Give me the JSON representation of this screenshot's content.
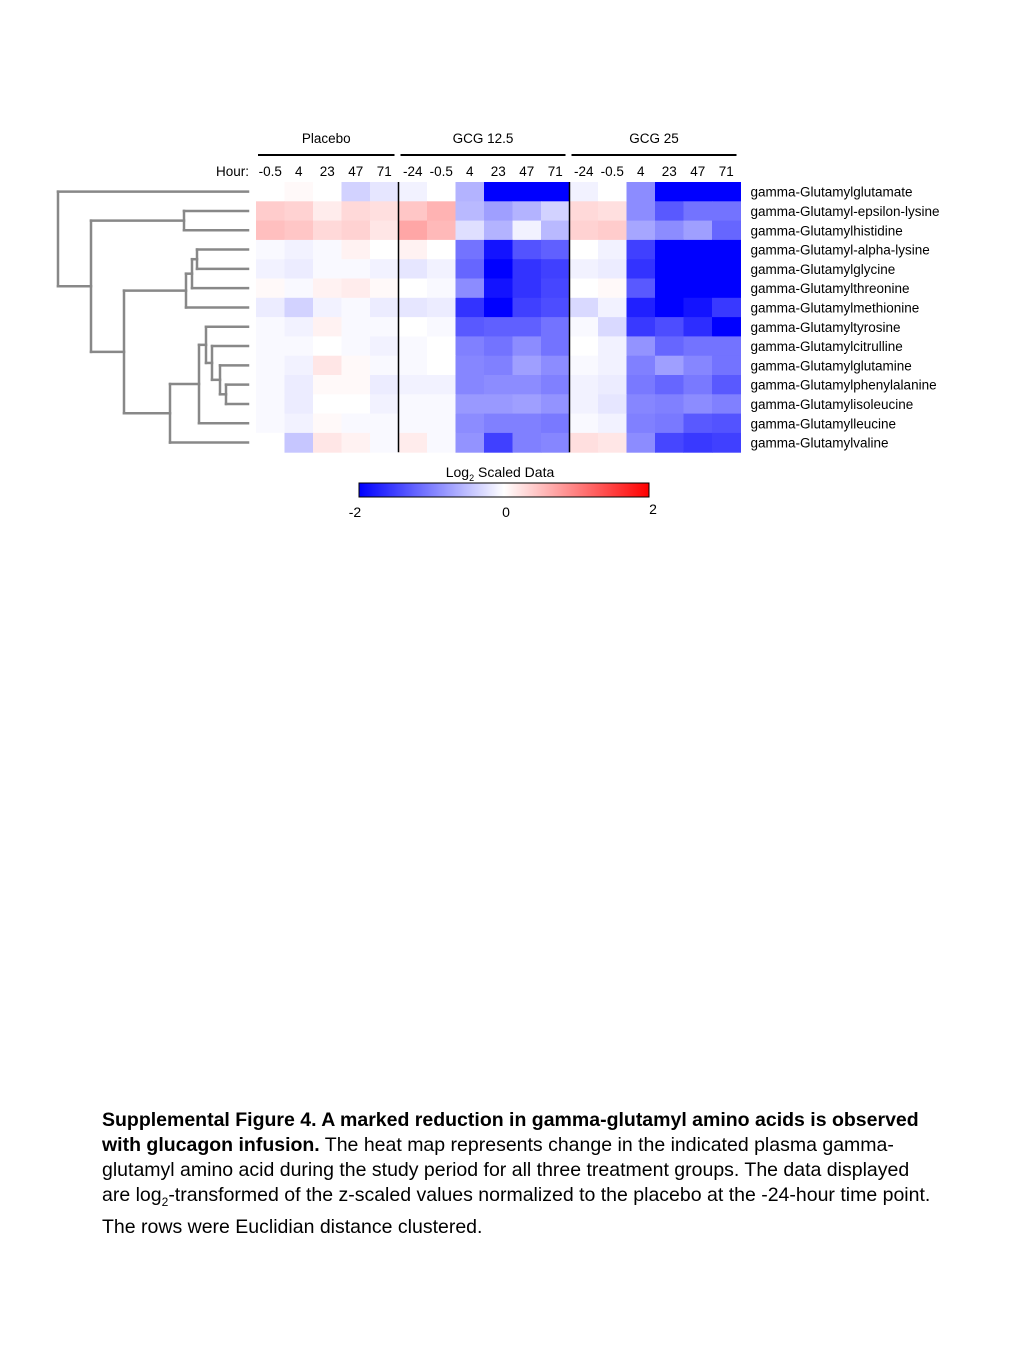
{
  "chart_data": {
    "type": "heatmap",
    "groups": [
      {
        "name": "Placebo",
        "hours": [
          "-0.5",
          "4",
          "23",
          "47",
          "71"
        ]
      },
      {
        "name": "GCG 12.5",
        "hours": [
          "-24",
          "-0.5",
          "4",
          "23",
          "47",
          "71"
        ]
      },
      {
        "name": "GCG 25",
        "hours": [
          "-24",
          "-0.5",
          "4",
          "23",
          "47",
          "71"
        ]
      }
    ],
    "hour_label": "Hour:",
    "rows": [
      "gamma-Glutamylglutamate",
      "gamma-Glutamyl-epsilon-lysine",
      "gamma-Glutamylhistidine",
      "gamma-Glutamyl-alpha-lysine",
      "gamma-Glutamylglycine",
      "gamma-Glutamylthreonine",
      "gamma-Glutamylmethionine",
      "gamma-Glutamyltyrosine",
      "gamma-Glutamylcitrulline",
      "gamma-Glutamylglutamine",
      "gamma-Glutamylphenylalanine",
      "gamma-Glutamylisoleucine",
      "gamma-Glutamylleucine",
      "gamma-Glutamylvaline"
    ],
    "values": [
      [
        0.0,
        0.05,
        0.0,
        -0.35,
        -0.2,
        -0.1,
        0.0,
        -0.6,
        -2.0,
        -2.0,
        -2.0,
        -0.1,
        0.0,
        -0.9,
        -2.0,
        -2.0,
        -2.0
      ],
      [
        0.4,
        0.35,
        0.15,
        0.3,
        0.25,
        0.45,
        0.6,
        -0.55,
        -0.75,
        -0.6,
        -0.35,
        0.3,
        0.25,
        -0.9,
        -1.3,
        -1.1,
        -1.1
      ],
      [
        0.5,
        0.45,
        0.3,
        0.35,
        0.2,
        0.7,
        0.55,
        -0.25,
        -0.6,
        -0.1,
        -0.55,
        0.35,
        0.4,
        -0.7,
        -0.9,
        -0.75,
        -1.2
      ],
      [
        -0.05,
        -0.1,
        -0.05,
        0.1,
        0.0,
        0.1,
        0.0,
        -1.1,
        -1.85,
        -1.35,
        -1.25,
        0.0,
        -0.1,
        -1.5,
        -2.0,
        -2.0,
        -2.0
      ],
      [
        -0.1,
        -0.15,
        -0.05,
        -0.05,
        -0.1,
        -0.2,
        -0.1,
        -1.2,
        -2.0,
        -1.6,
        -1.5,
        -0.1,
        -0.15,
        -1.6,
        -2.0,
        -2.0,
        -2.0
      ],
      [
        0.05,
        -0.05,
        0.1,
        0.15,
        0.05,
        0.0,
        -0.05,
        -0.9,
        -1.85,
        -1.6,
        -1.45,
        0.0,
        0.05,
        -1.3,
        -2.0,
        -2.0,
        -2.0
      ],
      [
        -0.15,
        -0.35,
        -0.1,
        -0.05,
        -0.15,
        -0.2,
        -0.15,
        -1.6,
        -2.0,
        -1.5,
        -1.4,
        -0.3,
        -0.1,
        -1.75,
        -2.0,
        -1.85,
        -1.55
      ],
      [
        -0.05,
        -0.1,
        0.1,
        -0.05,
        -0.05,
        0.0,
        -0.05,
        -1.3,
        -1.25,
        -1.25,
        -1.1,
        -0.05,
        -0.3,
        -1.55,
        -1.4,
        -1.65,
        -2.0
      ],
      [
        -0.05,
        -0.05,
        0.0,
        -0.05,
        -0.1,
        -0.05,
        0.0,
        -1.0,
        -1.1,
        -0.9,
        -1.1,
        0.0,
        -0.1,
        -0.85,
        -1.2,
        -1.1,
        -1.1
      ],
      [
        -0.05,
        -0.1,
        0.2,
        0.05,
        -0.05,
        -0.05,
        0.0,
        -0.95,
        -1.0,
        -0.75,
        -0.9,
        -0.05,
        -0.1,
        -1.0,
        -0.75,
        -0.95,
        -1.1
      ],
      [
        -0.05,
        -0.15,
        0.05,
        0.05,
        -0.15,
        -0.1,
        -0.1,
        -0.95,
        -0.9,
        -0.9,
        -1.0,
        -0.1,
        -0.15,
        -1.05,
        -1.2,
        -1.05,
        -1.3
      ],
      [
        -0.05,
        -0.15,
        0.0,
        0.0,
        -0.1,
        -0.05,
        -0.05,
        -0.8,
        -0.8,
        -0.75,
        -0.85,
        -0.1,
        -0.2,
        -0.95,
        -1.0,
        -0.9,
        -1.0
      ],
      [
        -0.05,
        -0.1,
        0.05,
        -0.05,
        -0.05,
        -0.05,
        -0.05,
        -0.9,
        -1.0,
        -1.0,
        -1.05,
        -0.05,
        -0.1,
        -1.0,
        -1.05,
        -1.3,
        -1.35
      ],
      [
        0.0,
        -0.45,
        0.2,
        0.1,
        -0.05,
        0.15,
        -0.05,
        -0.85,
        -1.5,
        -1.0,
        -0.95,
        0.25,
        0.2,
        -0.9,
        -1.45,
        -1.55,
        -1.5
      ]
    ],
    "colorbar": {
      "title_prefix": "Log",
      "title_sub": "2",
      "title_suffix": " Scaled Data",
      "range": [
        -2,
        2
      ],
      "ticks": [
        "-2",
        "0",
        "2"
      ],
      "low_color": "#0000ff",
      "mid_color": "#ffffff",
      "high_color": "#ff0000"
    }
  },
  "caption": {
    "bold": "Supplemental Figure 4. A marked reduction in gamma-glutamyl amino acids is observed with glucagon infusion.",
    "text_1": " The heat map represents change in the indicated plasma gamma-glutamyl amino acid during the study period for all three treatment groups. The data displayed are log",
    "sub": "2",
    "text_2": "-transformed of the z-scaled values normalized to the placebo at the -24-hour time point. The rows were Euclidian distance clustered."
  }
}
